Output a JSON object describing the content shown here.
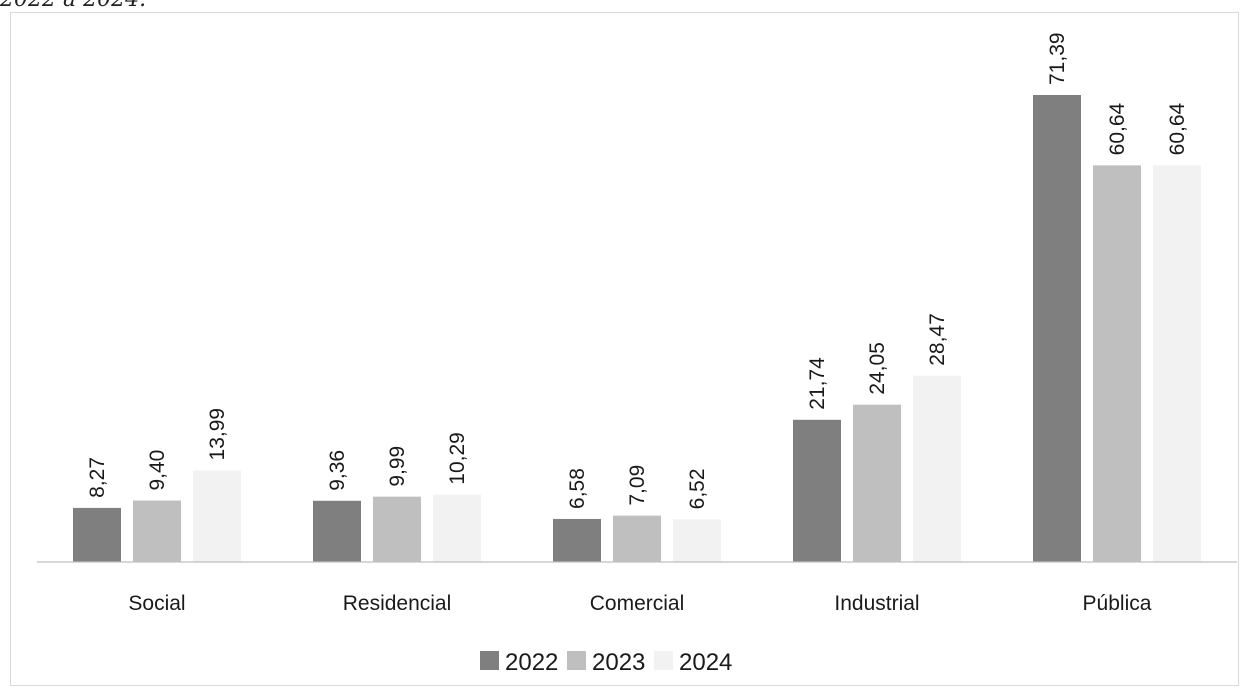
{
  "caption": "2022 a 2024.",
  "chart_data": {
    "type": "bar",
    "categories": [
      "Social",
      "Residencial",
      "Comercial",
      "Industrial",
      "Pública"
    ],
    "series": [
      {
        "name": "2022",
        "values": [
          8.27,
          9.36,
          6.58,
          21.74,
          71.39
        ],
        "labels": [
          "8,27",
          "9,36",
          "6,58",
          "21,74",
          "71,39"
        ],
        "color": "#7f7f7f"
      },
      {
        "name": "2023",
        "values": [
          9.4,
          9.99,
          7.09,
          24.05,
          60.64
        ],
        "labels": [
          "9,40",
          "9,99",
          "7,09",
          "24,05",
          "60,64"
        ],
        "color": "#bfbfbf"
      },
      {
        "name": "2024",
        "values": [
          13.99,
          10.29,
          6.52,
          28.47,
          60.64
        ],
        "labels": [
          "13,99",
          "10,29",
          "6,52",
          "28,47",
          "60,64"
        ],
        "color": "#f2f2f2"
      }
    ],
    "ylim": [
      0,
      80
    ],
    "grid": false,
    "legend": "bottom"
  }
}
